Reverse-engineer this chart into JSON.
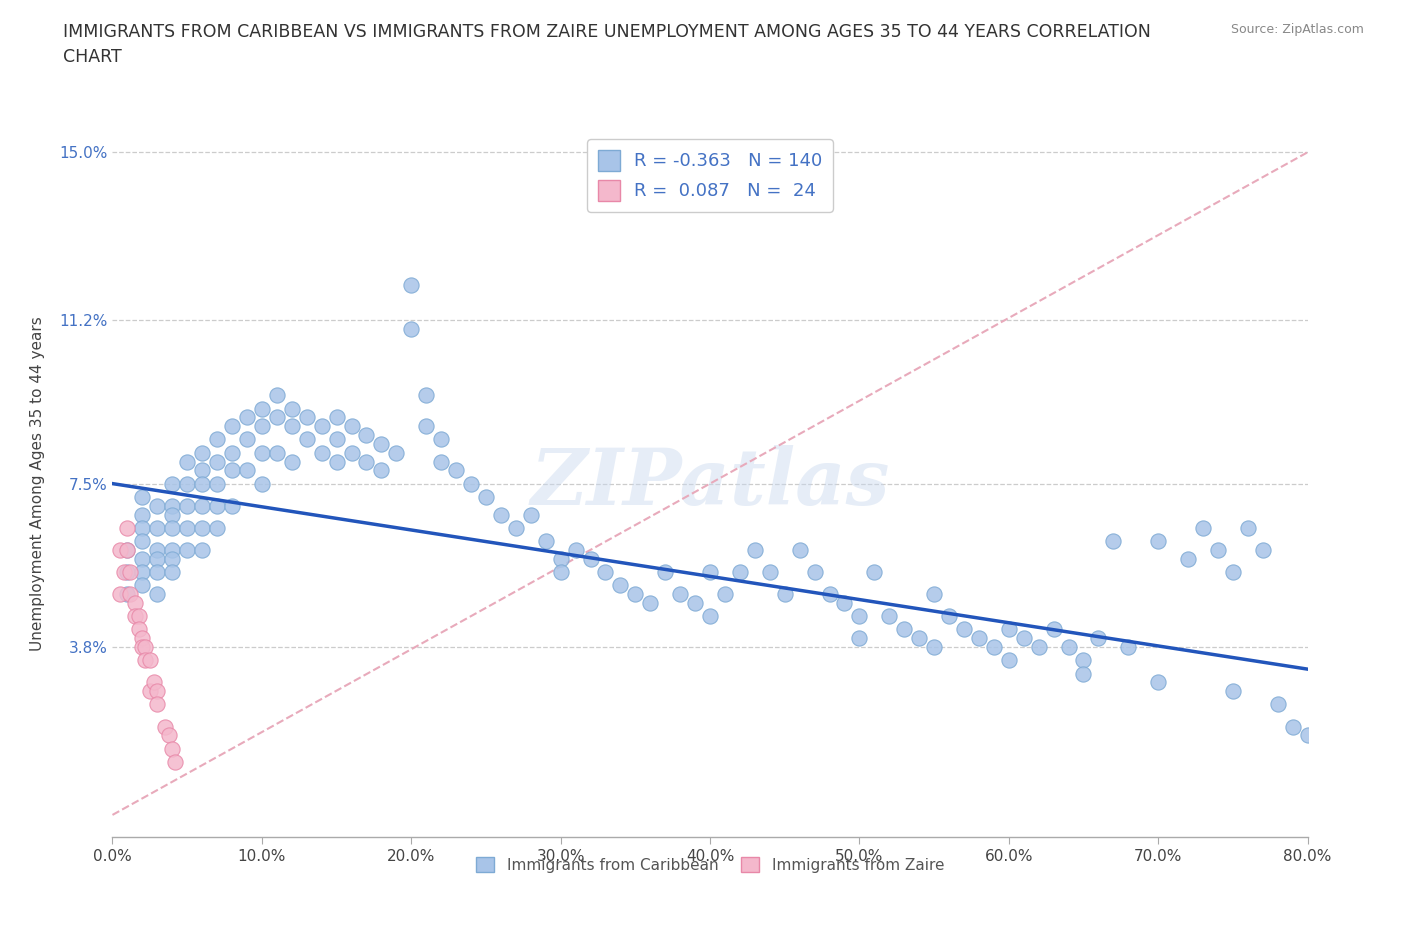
{
  "title": "IMMIGRANTS FROM CARIBBEAN VS IMMIGRANTS FROM ZAIRE UNEMPLOYMENT AMONG AGES 35 TO 44 YEARS CORRELATION\nCHART",
  "source": "Source: ZipAtlas.com",
  "ylabel": "Unemployment Among Ages 35 to 44 years",
  "xlim": [
    0.0,
    0.8
  ],
  "ylim": [
    -0.005,
    0.155
  ],
  "yticks": [
    0.038,
    0.075,
    0.112,
    0.15
  ],
  "ytick_labels": [
    "3.8%",
    "7.5%",
    "11.2%",
    "15.0%"
  ],
  "xticks": [
    0.0,
    0.1,
    0.2,
    0.3,
    0.4,
    0.5,
    0.6,
    0.7,
    0.8
  ],
  "xtick_labels": [
    "0.0%",
    "10.0%",
    "20.0%",
    "30.0%",
    "40.0%",
    "50.0%",
    "60.0%",
    "70.0%",
    "80.0%"
  ],
  "caribbean_color": "#a8c4e8",
  "zaire_color": "#f4b8cc",
  "caribbean_edge": "#7eaad4",
  "zaire_edge": "#e888a8",
  "caribbean_R": -0.363,
  "caribbean_N": 140,
  "zaire_R": 0.087,
  "zaire_N": 24,
  "trend_color": "#2255bb",
  "diagonal_color": "#e8aabb",
  "watermark": "ZIPatlas",
  "legend_label_caribbean": "Immigrants from Caribbean",
  "legend_label_zaire": "Immigrants from Zaire",
  "caribbean_x": [
    0.01,
    0.01,
    0.01,
    0.02,
    0.02,
    0.02,
    0.02,
    0.02,
    0.02,
    0.02,
    0.03,
    0.03,
    0.03,
    0.03,
    0.03,
    0.03,
    0.04,
    0.04,
    0.04,
    0.04,
    0.04,
    0.04,
    0.04,
    0.05,
    0.05,
    0.05,
    0.05,
    0.05,
    0.06,
    0.06,
    0.06,
    0.06,
    0.06,
    0.06,
    0.07,
    0.07,
    0.07,
    0.07,
    0.07,
    0.08,
    0.08,
    0.08,
    0.08,
    0.09,
    0.09,
    0.09,
    0.1,
    0.1,
    0.1,
    0.1,
    0.11,
    0.11,
    0.11,
    0.12,
    0.12,
    0.12,
    0.13,
    0.13,
    0.14,
    0.14,
    0.15,
    0.15,
    0.15,
    0.16,
    0.16,
    0.17,
    0.17,
    0.18,
    0.18,
    0.19,
    0.2,
    0.2,
    0.21,
    0.21,
    0.22,
    0.22,
    0.23,
    0.24,
    0.25,
    0.26,
    0.27,
    0.28,
    0.29,
    0.3,
    0.3,
    0.31,
    0.32,
    0.33,
    0.34,
    0.35,
    0.36,
    0.37,
    0.38,
    0.39,
    0.4,
    0.4,
    0.41,
    0.42,
    0.43,
    0.44,
    0.45,
    0.46,
    0.47,
    0.48,
    0.49,
    0.5,
    0.51,
    0.52,
    0.53,
    0.54,
    0.55,
    0.56,
    0.57,
    0.58,
    0.59,
    0.6,
    0.61,
    0.62,
    0.63,
    0.64,
    0.65,
    0.66,
    0.67,
    0.68,
    0.7,
    0.72,
    0.73,
    0.74,
    0.75,
    0.76,
    0.77,
    0.78,
    0.79,
    0.8,
    0.5,
    0.55,
    0.6,
    0.65,
    0.7,
    0.75
  ],
  "caribbean_y": [
    0.06,
    0.055,
    0.05,
    0.072,
    0.068,
    0.065,
    0.062,
    0.058,
    0.055,
    0.052,
    0.07,
    0.065,
    0.06,
    0.058,
    0.055,
    0.05,
    0.075,
    0.07,
    0.068,
    0.065,
    0.06,
    0.058,
    0.055,
    0.08,
    0.075,
    0.07,
    0.065,
    0.06,
    0.082,
    0.078,
    0.075,
    0.07,
    0.065,
    0.06,
    0.085,
    0.08,
    0.075,
    0.07,
    0.065,
    0.088,
    0.082,
    0.078,
    0.07,
    0.09,
    0.085,
    0.078,
    0.092,
    0.088,
    0.082,
    0.075,
    0.095,
    0.09,
    0.082,
    0.092,
    0.088,
    0.08,
    0.09,
    0.085,
    0.088,
    0.082,
    0.09,
    0.085,
    0.08,
    0.088,
    0.082,
    0.086,
    0.08,
    0.084,
    0.078,
    0.082,
    0.12,
    0.11,
    0.095,
    0.088,
    0.085,
    0.08,
    0.078,
    0.075,
    0.072,
    0.068,
    0.065,
    0.068,
    0.062,
    0.058,
    0.055,
    0.06,
    0.058,
    0.055,
    0.052,
    0.05,
    0.048,
    0.055,
    0.05,
    0.048,
    0.045,
    0.055,
    0.05,
    0.055,
    0.06,
    0.055,
    0.05,
    0.06,
    0.055,
    0.05,
    0.048,
    0.045,
    0.055,
    0.045,
    0.042,
    0.04,
    0.05,
    0.045,
    0.042,
    0.04,
    0.038,
    0.042,
    0.04,
    0.038,
    0.042,
    0.038,
    0.035,
    0.04,
    0.062,
    0.038,
    0.062,
    0.058,
    0.065,
    0.06,
    0.055,
    0.065,
    0.06,
    0.025,
    0.02,
    0.018,
    0.04,
    0.038,
    0.035,
    0.032,
    0.03,
    0.028
  ],
  "zaire_x": [
    0.005,
    0.005,
    0.008,
    0.01,
    0.01,
    0.012,
    0.012,
    0.015,
    0.015,
    0.018,
    0.018,
    0.02,
    0.02,
    0.022,
    0.022,
    0.025,
    0.025,
    0.028,
    0.03,
    0.03,
    0.035,
    0.038,
    0.04,
    0.042
  ],
  "zaire_y": [
    0.06,
    0.05,
    0.055,
    0.065,
    0.06,
    0.055,
    0.05,
    0.048,
    0.045,
    0.045,
    0.042,
    0.04,
    0.038,
    0.038,
    0.035,
    0.035,
    0.028,
    0.03,
    0.028,
    0.025,
    0.02,
    0.018,
    0.015,
    0.012
  ]
}
